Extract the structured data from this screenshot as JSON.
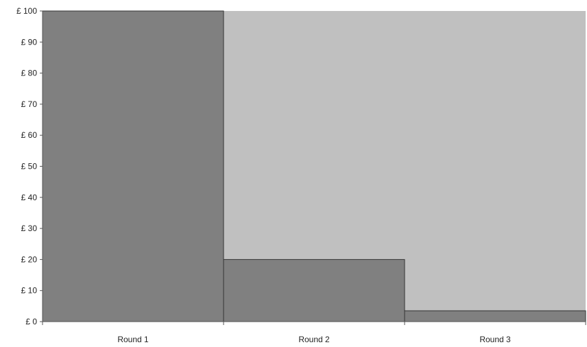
{
  "colors": {
    "plot_background": "#c0c0c0",
    "bar_fill": "#808080",
    "bar_stroke": "#333333",
    "axis": "#555555"
  },
  "chart_data": {
    "type": "bar",
    "categories": [
      "Round 1",
      "Round 2",
      "Round 3"
    ],
    "values": [
      100,
      20,
      3.5
    ],
    "title": "",
    "xlabel": "",
    "ylabel": "",
    "ylim": [
      0,
      100
    ],
    "yticks": [
      0,
      10,
      20,
      30,
      40,
      50,
      60,
      70,
      80,
      90,
      100
    ],
    "ytick_labels": [
      "£ 0",
      "£ 10",
      "£ 20",
      "£ 30",
      "£ 40",
      "£ 50",
      "£ 60",
      "£ 70",
      "£ 80",
      "£ 90",
      "£ 100"
    ],
    "grid": false,
    "legend": "none",
    "bar_gap": "none"
  }
}
